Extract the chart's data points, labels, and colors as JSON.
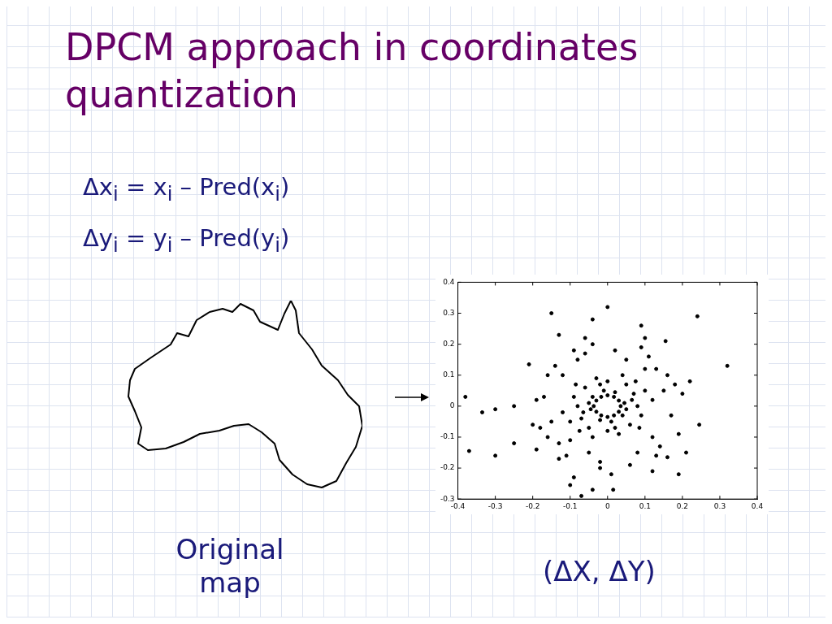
{
  "chart_data": {
    "type": "scatter",
    "title": "DPCM approach in coordinates quantization",
    "annotations": [
      "Δx$_{i}$ = x$_{i}$ – Pred(x$_{i}$)",
      "Δy$_{i}$ = y$_{i}$ – Pred(y$_{i}$)",
      "Original map",
      "(ΔX, ΔY)"
    ],
    "xlim": [
      -0.4,
      0.4
    ],
    "xticks": [
      -0.4,
      -0.3,
      -0.2,
      -0.1,
      0,
      0.1,
      0.2,
      0.3,
      0.4
    ],
    "ylim": [
      -0.3,
      0.4
    ],
    "yticks": [
      -0.3,
      -0.2,
      -0.1,
      0,
      0.1,
      0.2,
      0.3,
      0.4
    ],
    "grid": false,
    "legend": false,
    "marker": "circle",
    "series": [
      {
        "color": "#000000",
        "x": [
          -0.15,
          0.24,
          0.0,
          -0.13,
          -0.06,
          0.09,
          -0.04,
          0.32,
          -0.21,
          0.22,
          -0.38,
          -0.335,
          -0.3,
          -0.37,
          -0.3,
          0.245,
          0.21,
          0.19,
          -0.1,
          -0.04,
          0.015,
          -0.07,
          0.1,
          0.155,
          0.12,
          -0.25,
          -0.25,
          0.16,
          -0.19,
          -0.13,
          -0.09,
          0.01,
          -0.02,
          0.035,
          0.03,
          0.017,
          0.0,
          -0.017,
          -0.03,
          -0.037,
          -0.03,
          -0.017,
          0.0,
          0.017,
          0.03,
          0.045,
          -0.045,
          0.04,
          -0.04,
          0.05,
          -0.05,
          0.02,
          -0.02,
          0.01,
          -0.01,
          0.07,
          -0.07,
          0.06,
          -0.06,
          0.08,
          -0.08,
          0.0,
          0.0,
          0.05,
          -0.05,
          0.09,
          -0.09,
          0.03,
          -0.03,
          0.065,
          -0.065,
          0.1,
          -0.1,
          0.04,
          -0.04,
          0.02,
          -0.02,
          0.085,
          -0.085,
          0.075,
          -0.075,
          0.15,
          -0.15,
          0.12,
          -0.12,
          0.05,
          -0.05,
          0.13,
          -0.13,
          0.17,
          -0.17,
          0.08,
          -0.08,
          0.02,
          -0.02,
          0.11,
          -0.11,
          0.18,
          -0.18,
          0.14,
          -0.14,
          0.06,
          -0.06,
          0.19,
          -0.19,
          0.16,
          -0.16,
          0.1,
          -0.1,
          0.12,
          -0.12,
          -0.2,
          0.2,
          -0.16,
          0.09,
          -0.09,
          0.13,
          -0.04
        ],
        "values": [
          0.3,
          0.29,
          0.32,
          0.23,
          0.22,
          0.26,
          0.28,
          0.13,
          0.135,
          0.08,
          0.03,
          -0.02,
          -0.01,
          -0.145,
          -0.16,
          -0.06,
          -0.15,
          -0.22,
          -0.255,
          -0.27,
          -0.27,
          -0.29,
          0.22,
          0.21,
          -0.21,
          -0.12,
          0.0,
          -0.165,
          -0.14,
          -0.17,
          -0.23,
          -0.22,
          -0.2,
          0.0,
          0.018,
          0.03,
          0.035,
          0.03,
          0.018,
          0.0,
          -0.018,
          -0.03,
          -0.035,
          -0.03,
          -0.018,
          0.01,
          -0.01,
          -0.03,
          0.03,
          -0.01,
          0.01,
          0.045,
          -0.045,
          -0.05,
          0.05,
          0.04,
          -0.04,
          -0.06,
          0.06,
          0.0,
          0.0,
          0.08,
          -0.08,
          0.07,
          -0.07,
          -0.03,
          0.03,
          -0.09,
          0.09,
          0.02,
          -0.02,
          0.05,
          -0.05,
          0.1,
          -0.1,
          -0.07,
          0.07,
          -0.07,
          0.07,
          0.08,
          -0.08,
          0.05,
          -0.05,
          -0.1,
          0.1,
          0.15,
          -0.15,
          0.12,
          -0.12,
          -0.03,
          0.03,
          -0.15,
          0.15,
          0.18,
          -0.18,
          0.16,
          -0.16,
          0.07,
          -0.07,
          -0.13,
          0.13,
          -0.19,
          0.17,
          -0.09,
          0.02,
          0.1,
          -0.1,
          0.12,
          -0.11,
          0.02,
          -0.02,
          -0.06,
          0.04,
          0.1,
          0.19,
          0.18,
          -0.16,
          0.2
        ]
      }
    ]
  }
}
